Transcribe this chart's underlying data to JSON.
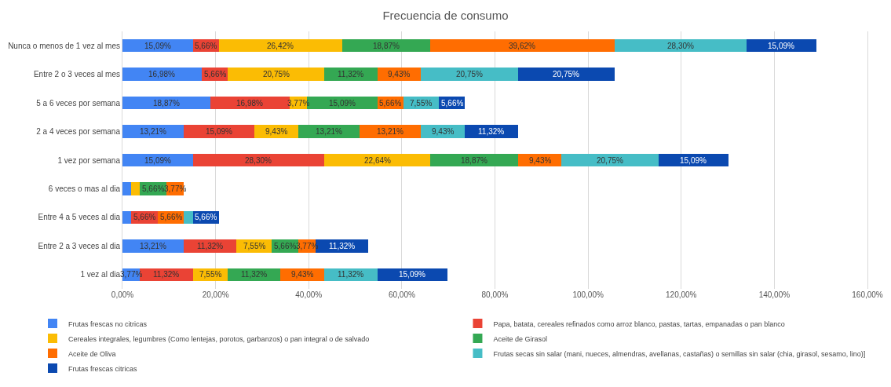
{
  "chart_data": {
    "type": "bar",
    "orientation": "horizontal",
    "stacked": true,
    "title": "Frecuencia de consumo",
    "categories": [
      "Nunca o menos de 1 vez al mes",
      "Entre 2 o 3 veces al mes",
      "5 a 6 veces por semana",
      "2 a 4 veces por semana",
      "1 vez por semana",
      "6 veces o mas al dia",
      "Entre 4 a 5 veces al dia",
      "Entre 2 a 3 veces al dia",
      "1 vez al dia"
    ],
    "series": [
      {
        "name": "Frutas frescas no citricas",
        "color": "#4285f4",
        "values": [
          15.09,
          16.98,
          18.87,
          13.21,
          15.09,
          1.89,
          1.89,
          13.21,
          3.77
        ],
        "value_labels": [
          "15,09%",
          "16,98%",
          "18,87%",
          "13,21%",
          "15,09%",
          null,
          null,
          "13,21%",
          "3,77%"
        ]
      },
      {
        "name": "Papa, batata, cereales refinados como arroz blanco, pastas, tartas, empanadas o pan blanco",
        "color": "#ea4335",
        "values": [
          5.66,
          5.66,
          16.98,
          15.09,
          28.3,
          0,
          5.66,
          11.32,
          11.32
        ],
        "value_labels": [
          "5,66%",
          "5,66%",
          "16,98%",
          "15,09%",
          "28,30%",
          null,
          "5,66%",
          "11,32%",
          "11,32%"
        ]
      },
      {
        "name": "Cereales integrales, legumbres (Como lentejas, porotos, garbanzos) o pan integral o de salvado",
        "color": "#fbbc04",
        "values": [
          26.42,
          20.75,
          3.77,
          9.43,
          22.64,
          1.89,
          0,
          7.55,
          7.55
        ],
        "value_labels": [
          "26,42%",
          "20,75%",
          "3,77%",
          "9,43%",
          "22,64%",
          null,
          null,
          "7,55%",
          "7,55%"
        ]
      },
      {
        "name": "Aceite de Girasol",
        "color": "#34a853",
        "values": [
          18.87,
          11.32,
          15.09,
          13.21,
          18.87,
          5.66,
          0,
          5.66,
          11.32
        ],
        "value_labels": [
          "18,87%",
          "11,32%",
          "15,09%",
          "13,21%",
          "18,87%",
          "5,66%",
          null,
          "5,66%",
          "11,32%"
        ]
      },
      {
        "name": "Aceite de Oliva",
        "color": "#ff6d01",
        "values": [
          39.62,
          9.43,
          5.66,
          13.21,
          9.43,
          3.77,
          5.66,
          3.77,
          9.43
        ],
        "value_labels": [
          "39,62%",
          "9,43%",
          "5,66%",
          "13,21%",
          "9,43%",
          "3,77%",
          "5,66%",
          "3,77%",
          "9,43%"
        ]
      },
      {
        "name": "Frutas secas sin salar (mani, nueces, almendras, avellanas, castañas) o semillas sin salar (chia, girasol, sesamo, lino)]",
        "color": "#46bdc6",
        "values": [
          28.3,
          20.75,
          7.55,
          9.43,
          20.75,
          0,
          1.89,
          0,
          11.32
        ],
        "value_labels": [
          "28,30%",
          "20,75%",
          "7,55%",
          "9,43%",
          "20,75%",
          null,
          null,
          null,
          "11,32%"
        ]
      },
      {
        "name": "Frutas frescas citricas",
        "color": "#0b49b0",
        "values": [
          15.09,
          20.75,
          5.66,
          11.32,
          15.09,
          0,
          5.66,
          11.32,
          15.09
        ],
        "value_labels": [
          "15,09%",
          "20,75%",
          "5,66%",
          "11,32%",
          "15,09%",
          null,
          "5,66%",
          "11,32%",
          "15,09%"
        ]
      }
    ],
    "xlim": [
      0,
      160
    ],
    "xticks": [
      {
        "value": 0,
        "label": "0,00%"
      },
      {
        "value": 20,
        "label": "20,00%"
      },
      {
        "value": 40,
        "label": "40,00%"
      },
      {
        "value": 60,
        "label": "60,00%"
      },
      {
        "value": 80,
        "label": "80,00%"
      },
      {
        "value": 100,
        "label": "100,00%"
      },
      {
        "value": 120,
        "label": "120,00%"
      },
      {
        "value": 140,
        "label": "140,00%"
      },
      {
        "value": 160,
        "label": "160,00%"
      }
    ],
    "grid": "x",
    "legend": "bottom"
  }
}
